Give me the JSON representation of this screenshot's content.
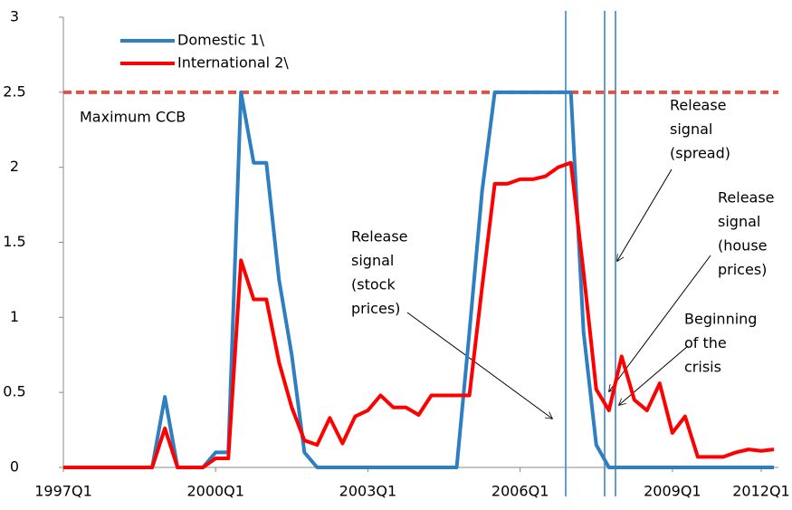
{
  "chart_data": {
    "type": "line",
    "categories": [
      "1997Q1",
      null,
      null,
      null,
      null,
      null,
      null,
      null,
      null,
      null,
      null,
      null,
      "2000Q1",
      null,
      null,
      null,
      null,
      null,
      null,
      null,
      null,
      null,
      null,
      null,
      "2003Q1",
      null,
      null,
      null,
      null,
      null,
      null,
      null,
      null,
      null,
      null,
      null,
      "2006Q1",
      null,
      null,
      null,
      null,
      null,
      null,
      null,
      null,
      null,
      null,
      null,
      "2009Q1",
      null,
      null,
      null,
      null,
      null,
      null,
      "2012Q1",
      null
    ],
    "series": [
      {
        "name": "Domestic 1\\",
        "color": "#2e7fc2",
        "values": [
          0,
          0,
          0,
          0,
          0,
          0,
          0,
          0,
          0.47,
          0,
          0,
          0,
          0.1,
          0.1,
          2.5,
          2.03,
          2.03,
          1.25,
          0.75,
          0.1,
          0,
          0,
          0,
          0,
          0,
          0,
          0,
          0,
          0,
          0,
          0,
          0,
          0.9,
          1.84,
          2.5,
          2.5,
          2.5,
          2.5,
          2.5,
          2.5,
          2.5,
          0.9,
          0.15,
          0,
          0,
          0,
          0,
          0,
          0,
          0,
          0,
          0,
          0,
          0,
          0,
          0,
          0
        ]
      },
      {
        "name": "International 2\\",
        "color": "#ff0000",
        "values": [
          0,
          0,
          0,
          0,
          0,
          0,
          0,
          0,
          0.26,
          0,
          0,
          0,
          0.06,
          0.06,
          1.38,
          1.12,
          1.12,
          0.7,
          0.4,
          0.18,
          0.15,
          0.33,
          0.16,
          0.34,
          0.38,
          0.48,
          0.4,
          0.4,
          0.35,
          0.48,
          0.48,
          0.48,
          0.48,
          1.2,
          1.89,
          1.89,
          1.92,
          1.92,
          1.94,
          2.0,
          2.03,
          1.3,
          0.52,
          0.38,
          0.74,
          0.45,
          0.38,
          0.56,
          0.23,
          0.34,
          0.07,
          0.07,
          0.07,
          0.1,
          0.12,
          0.11,
          0.12
        ]
      }
    ],
    "ylim": [
      0,
      3
    ],
    "yticks": [
      0,
      0.5,
      1,
      1.5,
      2,
      2.5,
      3
    ],
    "max_line": {
      "value": 2.5,
      "label": "Maximum CCB",
      "color": "#d9534f"
    },
    "annotations": [
      [
        "Release",
        "signal",
        "(stock",
        "prices)"
      ],
      [
        "Release",
        "signal",
        "(spread)"
      ],
      [
        "Release",
        "signal",
        "(house",
        "prices)"
      ],
      [
        "Beginning",
        "of the",
        "crisis"
      ]
    ]
  }
}
